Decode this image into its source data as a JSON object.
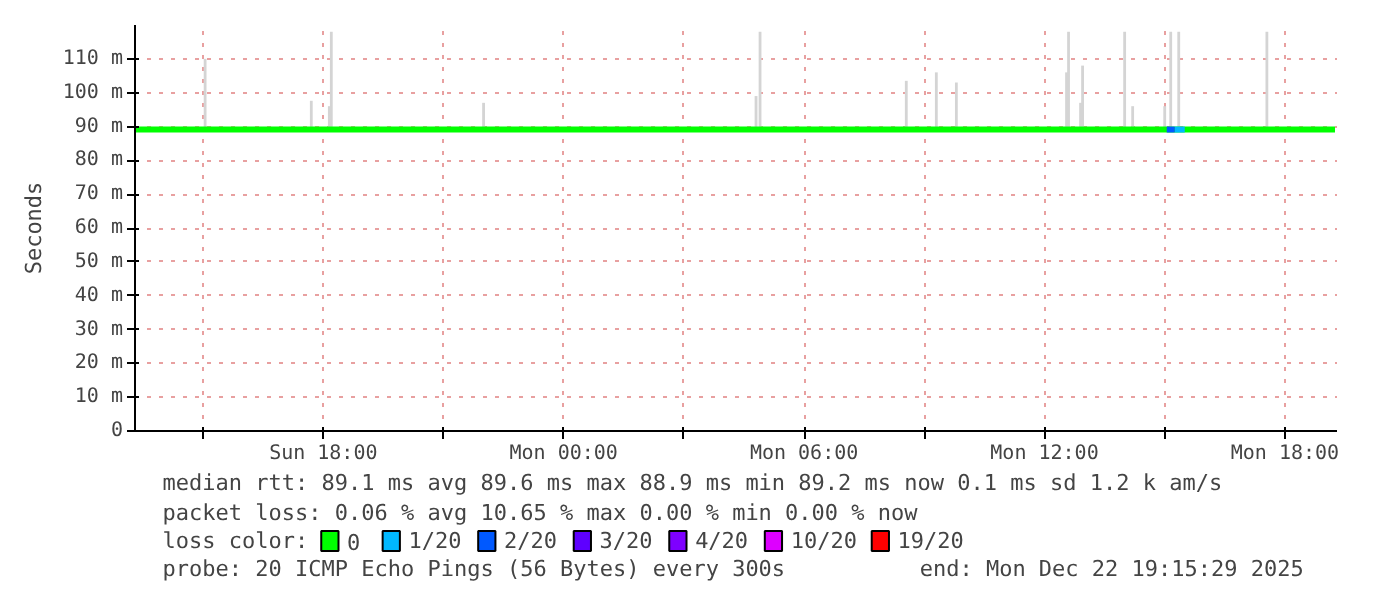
{
  "chart_data": {
    "type": "line",
    "ylabel": "Seconds",
    "xlim": [
      "2025-12-21T13:18",
      "2025-12-22T19:18"
    ],
    "ylim": [
      0,
      120
    ],
    "xticks": [
      {
        "value": "2025-12-21T15:00",
        "label": null
      },
      {
        "value": "2025-12-21T18:00",
        "label": "Sun 18:00"
      },
      {
        "value": "2025-12-21T21:00",
        "label": null
      },
      {
        "value": "2025-12-22T00:00",
        "label": "Mon 00:00"
      },
      {
        "value": "2025-12-22T03:00",
        "label": null
      },
      {
        "value": "2025-12-22T06:00",
        "label": "Mon 06:00"
      },
      {
        "value": "2025-12-22T09:00",
        "label": null
      },
      {
        "value": "2025-12-22T12:00",
        "label": "Mon 12:00"
      },
      {
        "value": "2025-12-22T15:00",
        "label": null
      },
      {
        "value": "2025-12-22T18:00",
        "label": "Mon 18:00"
      }
    ],
    "yticks": [
      0,
      {
        "value": 10,
        "label": "10 m"
      },
      {
        "value": 20,
        "label": "20 m"
      },
      {
        "value": 30,
        "label": "30 m"
      },
      {
        "value": 40,
        "label": "40 m"
      },
      {
        "value": 50,
        "label": "50 m"
      },
      {
        "value": 60,
        "label": "60 m"
      },
      {
        "value": 70,
        "label": "70 m"
      },
      {
        "value": 80,
        "label": "80 m"
      },
      {
        "value": 90,
        "label": "90 m"
      },
      {
        "value": 100,
        "label": "100 m"
      },
      {
        "value": 110,
        "label": "110 m"
      }
    ],
    "grid": true,
    "legend": "bottom",
    "legend_title": "loss color:",
    "line_style": "solid",
    "series": [
      {
        "type": "bar",
        "color": "#d4d4d4",
        "x": [
          "2025-12-21T15:03",
          "2025-12-21T17:42",
          "2025-12-21T18:09",
          "2025-12-21T18:12",
          "2025-12-21T22:00",
          "2025-12-22T04:48",
          "2025-12-22T04:54",
          "2025-12-22T08:33",
          "2025-12-22T09:18",
          "2025-12-22T09:48",
          "2025-12-22T12:33",
          "2025-12-22T12:36",
          "2025-12-22T12:54",
          "2025-12-22T12:57",
          "2025-12-22T14:00",
          "2025-12-22T14:12",
          "2025-12-22T15:00",
          "2025-12-22T15:09",
          "2025-12-22T15:21",
          "2025-12-22T17:33"
        ],
        "base": [
          89,
          89,
          89,
          89,
          89,
          89,
          89,
          89,
          89,
          89,
          89,
          89,
          89,
          89,
          89,
          89,
          89,
          89,
          89,
          89
        ],
        "values": [
          21,
          8.6,
          7,
          29,
          8,
          10,
          29,
          14.5,
          17,
          14,
          17,
          29,
          8,
          19,
          29,
          7,
          7,
          29,
          29,
          29
        ]
      },
      {
        "name": "0",
        "color": "#00ff00",
        "x": [
          "2025-12-21T13:18",
          "2025-12-21T20:00",
          "2025-12-22T01:00",
          "2025-12-22T06:00",
          "2025-12-22T11:00",
          "2025-12-22T19:15"
        ],
        "values": [
          89.1,
          89.1,
          89.1,
          89.1,
          89.1,
          89.1
        ]
      },
      {
        "name": "1/20",
        "color": "#00b8ff",
        "x": [
          "2025-12-22T15:15",
          "2025-12-22T15:30"
        ],
        "values": [
          89.1,
          89.1
        ]
      },
      {
        "name": "2/20",
        "color": "#0059ff",
        "x": [
          "2025-12-22T15:03",
          "2025-12-22T15:15"
        ],
        "values": [
          89.1,
          89.1
        ]
      },
      {
        "name": "3/20",
        "color": "#5e00ff"
      },
      {
        "name": "4/20",
        "color": "#7e00ff"
      },
      {
        "name": "10/20",
        "color": "#dd00ff"
      },
      {
        "name": "19/20",
        "color": "#ff0000"
      }
    ],
    "annotations": [
      "median rtt:  89.1 ms avg  89.6 ms max  88.9 ms min  89.2 ms now  0.1 ms sd  1.2 k am/s",
      "packet loss: 0.06 % avg  10.65 % max  0.00 % min  0.00 % now",
      "probe:       20 ICMP Echo Pings (56 Bytes) every 300s",
      "end: Mon Dec 22 19:15:29 2025"
    ]
  }
}
